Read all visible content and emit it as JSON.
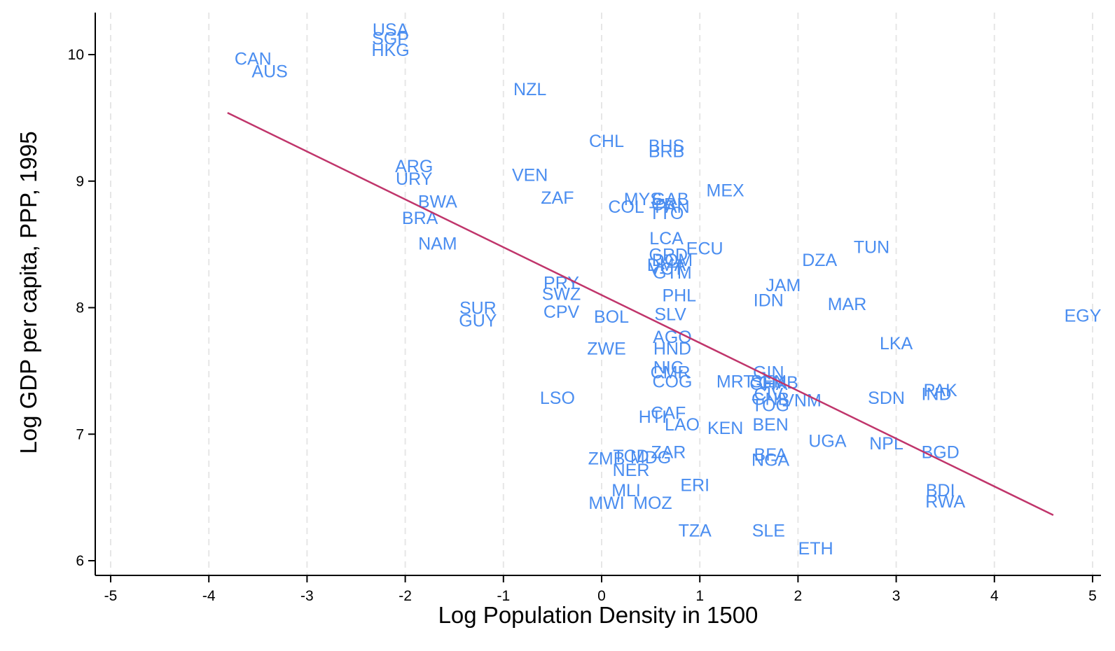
{
  "chart_data": {
    "type": "scatter",
    "xlabel": "Log Population Density in 1500",
    "ylabel": "Log GDP per capita, PPP, 1995",
    "xlim": [
      -5,
      5
    ],
    "ylim": [
      6,
      10
    ],
    "xticks": [
      -5,
      -4,
      -3,
      -2,
      -1,
      0,
      1,
      2,
      3,
      4,
      5
    ],
    "yticks": [
      6,
      7,
      8,
      9,
      10
    ],
    "x_tick_labels": [
      "-5",
      "-4",
      "-3",
      "-2",
      "-1",
      "0",
      "1",
      "2",
      "3",
      "4",
      "5"
    ],
    "y_tick_labels": [
      "6",
      "7",
      "8",
      "9",
      "10"
    ],
    "grid": "vertical dashed",
    "label_color": "#4a8df0",
    "fit_line_color": "#c0356b",
    "fit_line": {
      "x": [
        -3.81,
        4.6
      ],
      "y": [
        9.54,
        6.36
      ]
    },
    "points": [
      {
        "label": "USA",
        "x": -2.15,
        "y": 10.2
      },
      {
        "label": "SGP",
        "x": -2.15,
        "y": 10.13
      },
      {
        "label": "HKG",
        "x": -2.15,
        "y": 10.04
      },
      {
        "label": "CAN",
        "x": -3.55,
        "y": 9.97
      },
      {
        "label": "AUS",
        "x": -3.38,
        "y": 9.87
      },
      {
        "label": "NZL",
        "x": -0.73,
        "y": 9.73
      },
      {
        "label": "CHL",
        "x": 0.05,
        "y": 9.32
      },
      {
        "label": "BHS",
        "x": 0.66,
        "y": 9.28
      },
      {
        "label": "BRB",
        "x": 0.66,
        "y": 9.24
      },
      {
        "label": "ARG",
        "x": -1.91,
        "y": 9.12
      },
      {
        "label": "URY",
        "x": -1.91,
        "y": 9.02
      },
      {
        "label": "VEN",
        "x": -0.73,
        "y": 9.05
      },
      {
        "label": "MEX",
        "x": 1.26,
        "y": 8.93
      },
      {
        "label": "ZAF",
        "x": -0.45,
        "y": 8.87
      },
      {
        "label": "MYS",
        "x": 0.42,
        "y": 8.86
      },
      {
        "label": "GAB",
        "x": 0.7,
        "y": 8.86
      },
      {
        "label": "BWA",
        "x": -1.67,
        "y": 8.84
      },
      {
        "label": "CRI",
        "x": 0.66,
        "y": 8.82
      },
      {
        "label": "PAN",
        "x": 0.72,
        "y": 8.8
      },
      {
        "label": "COL",
        "x": 0.25,
        "y": 8.8
      },
      {
        "label": "TTO",
        "x": 0.66,
        "y": 8.75
      },
      {
        "label": "BRA",
        "x": -1.85,
        "y": 8.71
      },
      {
        "label": "NAM",
        "x": -1.67,
        "y": 8.51
      },
      {
        "label": "LCA",
        "x": 0.66,
        "y": 8.55
      },
      {
        "label": "TUN",
        "x": 2.75,
        "y": 8.48
      },
      {
        "label": "ECU",
        "x": 1.05,
        "y": 8.47
      },
      {
        "label": "GRD",
        "x": 0.68,
        "y": 8.42
      },
      {
        "label": "DOM",
        "x": 0.72,
        "y": 8.38
      },
      {
        "label": "DZA",
        "x": 2.22,
        "y": 8.38
      },
      {
        "label": "DMA",
        "x": 0.66,
        "y": 8.34
      },
      {
        "label": "VCT",
        "x": 0.66,
        "y": 8.31
      },
      {
        "label": "GTM",
        "x": 0.72,
        "y": 8.28
      },
      {
        "label": "PRY",
        "x": -0.41,
        "y": 8.2
      },
      {
        "label": "JAM",
        "x": 1.85,
        "y": 8.18
      },
      {
        "label": "SWZ",
        "x": -0.41,
        "y": 8.11
      },
      {
        "label": "PHL",
        "x": 0.79,
        "y": 8.1
      },
      {
        "label": "IDN",
        "x": 1.7,
        "y": 8.06
      },
      {
        "label": "MAR",
        "x": 2.5,
        "y": 8.03
      },
      {
        "label": "SUR",
        "x": -1.26,
        "y": 8.0
      },
      {
        "label": "CPV",
        "x": -0.41,
        "y": 7.97
      },
      {
        "label": "SLV",
        "x": 0.7,
        "y": 7.95
      },
      {
        "label": "EGY",
        "x": 4.9,
        "y": 7.94
      },
      {
        "label": "BOL",
        "x": 0.1,
        "y": 7.93
      },
      {
        "label": "GUY",
        "x": -1.26,
        "y": 7.9
      },
      {
        "label": "AGO",
        "x": 0.72,
        "y": 7.77
      },
      {
        "label": "LKA",
        "x": 3.0,
        "y": 7.72
      },
      {
        "label": "HND",
        "x": 0.72,
        "y": 7.68
      },
      {
        "label": "ZWE",
        "x": 0.05,
        "y": 7.68
      },
      {
        "label": "NIC",
        "x": 0.68,
        "y": 7.53
      },
      {
        "label": "CMR",
        "x": 0.7,
        "y": 7.49
      },
      {
        "label": "GIN",
        "x": 1.7,
        "y": 7.49
      },
      {
        "label": "COG",
        "x": 0.72,
        "y": 7.42
      },
      {
        "label": "MRT",
        "x": 1.36,
        "y": 7.42
      },
      {
        "label": "SEN",
        "x": 1.7,
        "y": 7.42
      },
      {
        "label": "GHA",
        "x": 1.7,
        "y": 7.4
      },
      {
        "label": "GMB",
        "x": 1.8,
        "y": 7.41
      },
      {
        "label": "PAK",
        "x": 3.45,
        "y": 7.35
      },
      {
        "label": "IND",
        "x": 3.41,
        "y": 7.32
      },
      {
        "label": "SDN",
        "x": 2.9,
        "y": 7.29
      },
      {
        "label": "LSO",
        "x": -0.45,
        "y": 7.29
      },
      {
        "label": "CIV",
        "x": 1.7,
        "y": 7.32
      },
      {
        "label": "VNM",
        "x": 2.04,
        "y": 7.27
      },
      {
        "label": "GNB",
        "x": 1.72,
        "y": 7.28
      },
      {
        "label": "TOG",
        "x": 1.72,
        "y": 7.23
      },
      {
        "label": "CAF",
        "x": 0.68,
        "y": 7.17
      },
      {
        "label": "HTI",
        "x": 0.52,
        "y": 7.14
      },
      {
        "label": "LAO",
        "x": 0.82,
        "y": 7.08
      },
      {
        "label": "BEN",
        "x": 1.72,
        "y": 7.08
      },
      {
        "label": "KEN",
        "x": 1.26,
        "y": 7.05
      },
      {
        "label": "UGA",
        "x": 2.3,
        "y": 6.95
      },
      {
        "label": "NPL",
        "x": 2.9,
        "y": 6.93
      },
      {
        "label": "BGD",
        "x": 3.45,
        "y": 6.86
      },
      {
        "label": "ZAR",
        "x": 0.68,
        "y": 6.86
      },
      {
        "label": "TCD",
        "x": 0.3,
        "y": 6.83
      },
      {
        "label": "BFA",
        "x": 1.72,
        "y": 6.84
      },
      {
        "label": "MDG",
        "x": 0.5,
        "y": 6.82
      },
      {
        "label": "ZMB",
        "x": 0.05,
        "y": 6.81
      },
      {
        "label": "NGA",
        "x": 1.72,
        "y": 6.8
      },
      {
        "label": "NER",
        "x": 0.3,
        "y": 6.72
      },
      {
        "label": "ERI",
        "x": 0.95,
        "y": 6.6
      },
      {
        "label": "MLI",
        "x": 0.25,
        "y": 6.56
      },
      {
        "label": "BDI",
        "x": 3.45,
        "y": 6.56
      },
      {
        "label": "RWA",
        "x": 3.5,
        "y": 6.47
      },
      {
        "label": "MWI",
        "x": 0.05,
        "y": 6.46
      },
      {
        "label": "MOZ",
        "x": 0.52,
        "y": 6.46
      },
      {
        "label": "TZA",
        "x": 0.95,
        "y": 6.24
      },
      {
        "label": "SLE",
        "x": 1.7,
        "y": 6.24
      },
      {
        "label": "ETH",
        "x": 2.18,
        "y": 6.1
      }
    ]
  }
}
